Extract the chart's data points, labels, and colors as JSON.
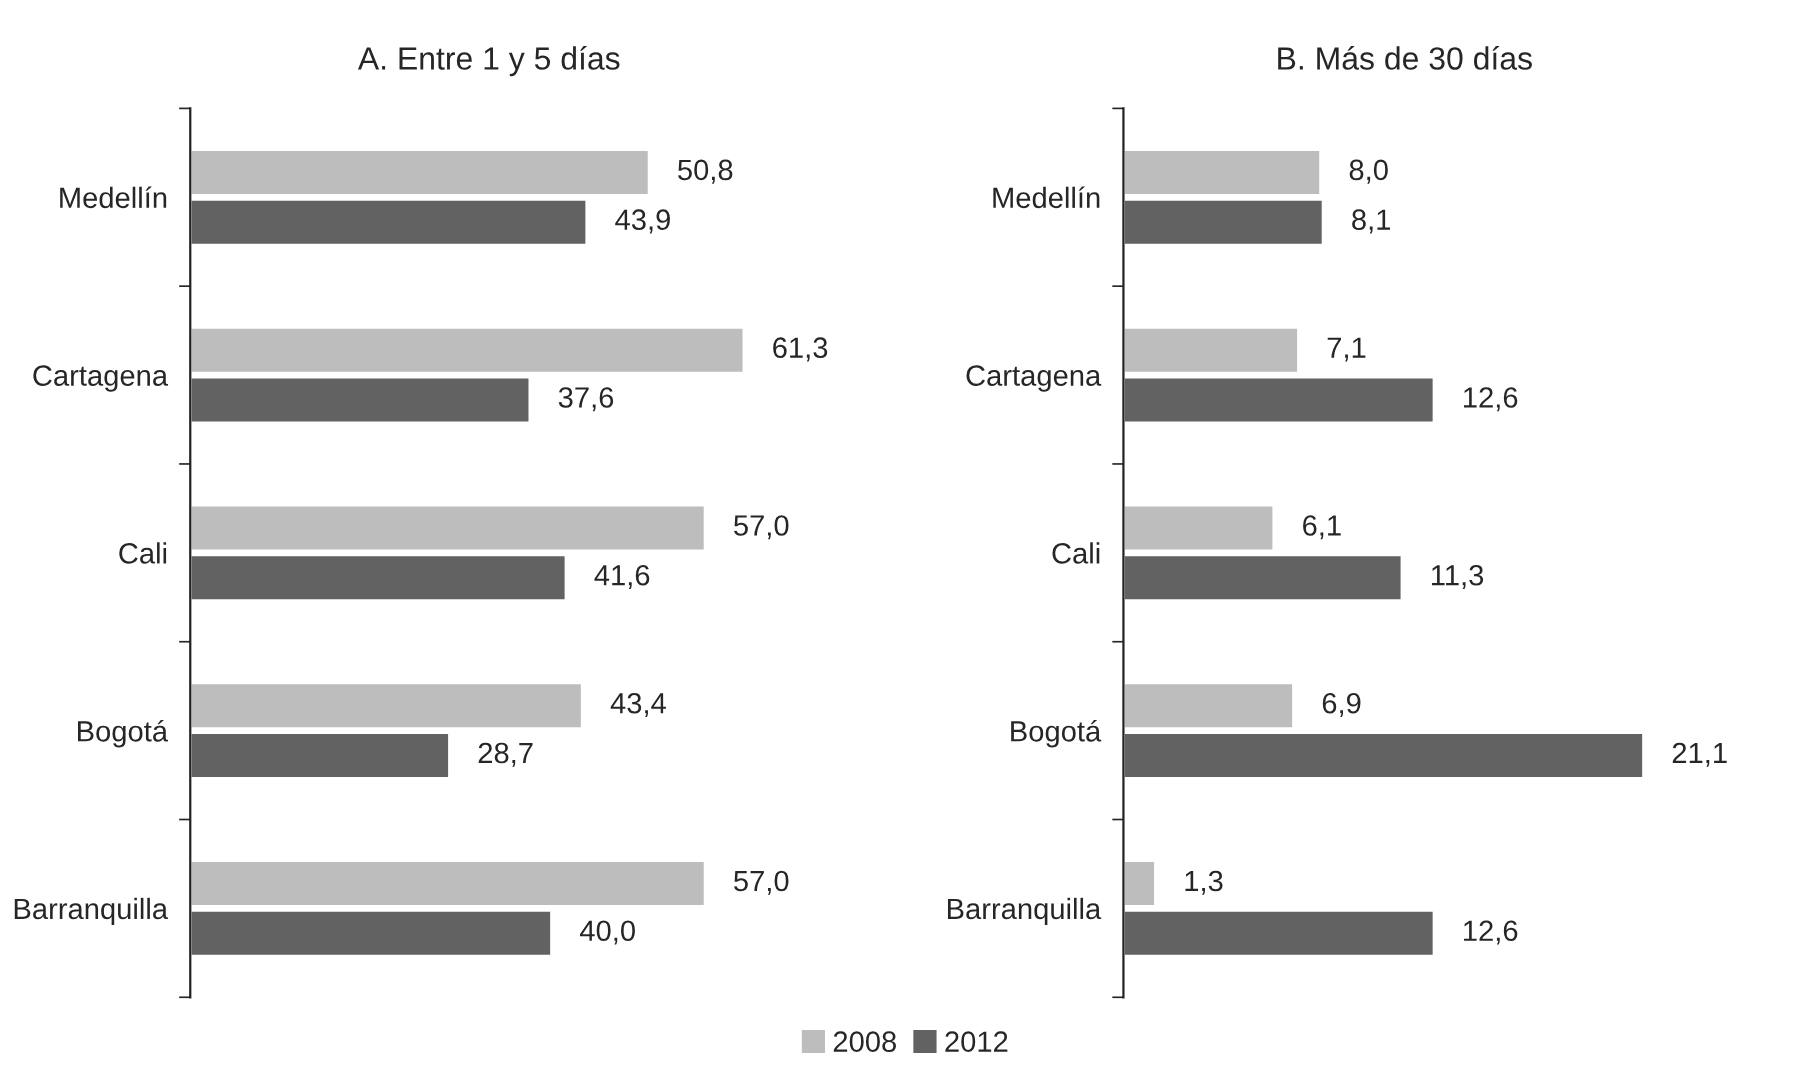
{
  "chart_data": [
    {
      "type": "bar",
      "orientation": "horizontal",
      "title": "A. Entre 1 y 5 días",
      "categories": [
        "Medellín",
        "Cartagena",
        "Cali",
        "Bogotá",
        "Barranquilla"
      ],
      "legend": "bottom",
      "series": [
        {
          "name": "2008",
          "color": "#bdbdbd",
          "values": [
            50.8,
            61.3,
            57.0,
            43.4,
            57.0
          ],
          "value_labels": [
            "50,8",
            "61,3",
            "57,0",
            "43,4",
            "57,0"
          ]
        },
        {
          "name": "2012",
          "color": "#626262",
          "values": [
            43.9,
            37.6,
            41.6,
            28.7,
            40.0
          ],
          "value_labels": [
            "43,9",
            "37,6",
            "41,6",
            "28,7",
            "40,0"
          ]
        }
      ]
    },
    {
      "type": "bar",
      "orientation": "horizontal",
      "title": "B. Más de 30 días",
      "categories": [
        "Medellín",
        "Cartagena",
        "Cali",
        "Bogotá",
        "Barranquilla"
      ],
      "legend": "bottom",
      "series": [
        {
          "name": "2008",
          "color": "#bdbdbd",
          "values": [
            8.0,
            7.1,
            6.1,
            6.9,
            1.3
          ],
          "value_labels": [
            "8,0",
            "7,1",
            "6,1",
            "6,9",
            "1,3"
          ]
        },
        {
          "name": "2012",
          "color": "#626262",
          "values": [
            8.1,
            12.6,
            11.3,
            21.1,
            12.6
          ],
          "value_labels": [
            "8,1",
            "12,6",
            "11,3",
            "21,1",
            "12,6"
          ]
        }
      ]
    }
  ]
}
